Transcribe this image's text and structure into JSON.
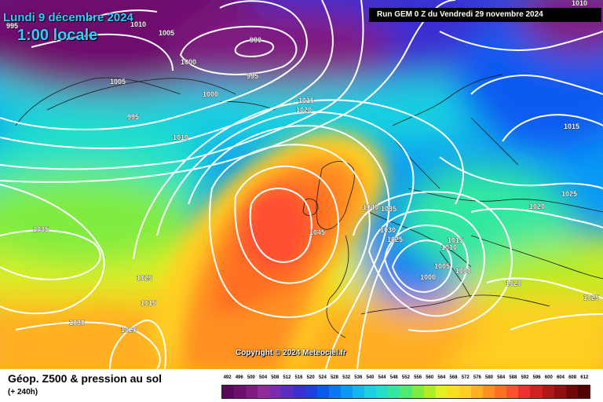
{
  "header": {
    "date": "Lundi 9 décembre 2024",
    "time": "1:00 locale",
    "run": "Run GEM 0 Z du Vendredi 29 novembre 2024"
  },
  "copyright": "Copyright © 2024 Meteociel.fr",
  "footer": {
    "title": "Géop. Z500 & pression au sol",
    "subtitle": "(+ 240h)"
  },
  "legend": {
    "values": [
      "492",
      "496",
      "500",
      "504",
      "508",
      "512",
      "516",
      "520",
      "524",
      "528",
      "532",
      "536",
      "540",
      "544",
      "548",
      "552",
      "556",
      "560",
      "564",
      "568",
      "572",
      "576",
      "580",
      "584",
      "588",
      "592",
      "596",
      "600",
      "604",
      "608",
      "612"
    ],
    "colors": [
      "#5b0a5b",
      "#6e0f6e",
      "#801a80",
      "#8f2a9a",
      "#7a2bb0",
      "#5a2cc0",
      "#3b2fd0",
      "#1f3fe0",
      "#0a5af0",
      "#0a78f5",
      "#0a98f5",
      "#10b8f0",
      "#18d0e0",
      "#20e0c8",
      "#30e8a0",
      "#50ea70",
      "#80ec40",
      "#b0ee20",
      "#e0f020",
      "#f8e020",
      "#ffd020",
      "#ffb020",
      "#ff9020",
      "#ff7020",
      "#ff5030",
      "#f03030",
      "#d02020",
      "#b01818",
      "#901010",
      "#700808",
      "#500404"
    ]
  },
  "isobars": [
    {
      "label": "995",
      "pos": "left-top"
    },
    {
      "label": "1010",
      "pos": "top"
    },
    {
      "label": "1005",
      "pos": "top"
    },
    {
      "label": "990",
      "pos": "greenland"
    },
    {
      "label": "1000",
      "pos": "greenland"
    },
    {
      "label": "1005",
      "pos": "greenland-left"
    },
    {
      "label": "995",
      "pos": "greenland"
    },
    {
      "label": "1000",
      "pos": "greenland"
    },
    {
      "label": "995",
      "pos": "greenland-low"
    },
    {
      "label": "1010",
      "pos": "iceland"
    },
    {
      "label": "1015",
      "pos": "norwegian-sea"
    },
    {
      "label": "1020",
      "pos": "norwegian-sea"
    },
    {
      "label": "1010",
      "pos": "top-right"
    },
    {
      "label": "1015",
      "pos": "russia"
    },
    {
      "label": "1025",
      "pos": "eastern-europe"
    },
    {
      "label": "1020",
      "pos": "eastern-europe"
    },
    {
      "label": "1040",
      "pos": "uk"
    },
    {
      "label": "1035",
      "pos": "north-sea"
    },
    {
      "label": "1030",
      "pos": "benelux"
    },
    {
      "label": "1025",
      "pos": "france"
    },
    {
      "label": "1015",
      "pos": "alps"
    },
    {
      "label": "1010",
      "pos": "alps"
    },
    {
      "label": "1005",
      "pos": "italy"
    },
    {
      "label": "1000",
      "pos": "italy"
    },
    {
      "label": "1000",
      "pos": "tyrrhenian"
    },
    {
      "label": "1020",
      "pos": "balkans"
    },
    {
      "label": "1025",
      "pos": "turkey"
    },
    {
      "label": "1045",
      "pos": "atlantic-high"
    },
    {
      "label": "1035",
      "pos": "mid-atlantic"
    },
    {
      "label": "1025",
      "pos": "azores"
    },
    {
      "label": "1015",
      "pos": "azores"
    },
    {
      "label": "1030",
      "pos": "south-atlantic"
    },
    {
      "label": "1020",
      "pos": "south-atlantic"
    }
  ]
}
